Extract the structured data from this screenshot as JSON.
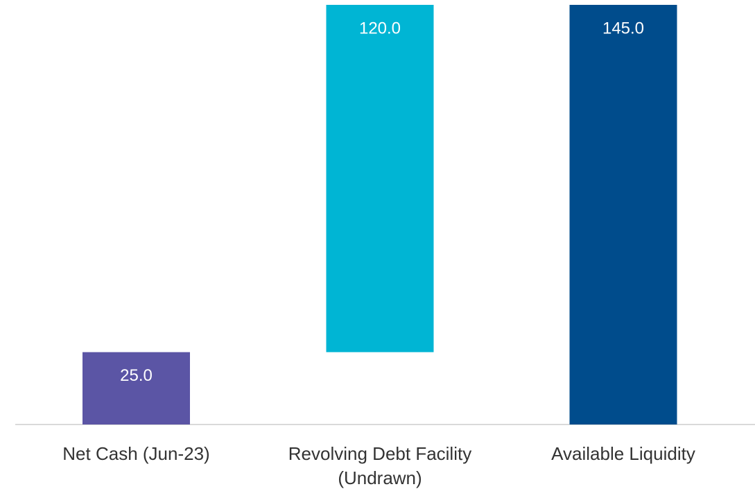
{
  "chart_data": {
    "type": "waterfall",
    "categories": [
      "Net Cash (Jun-23)",
      "Revolving Debt Facility (Undrawn)",
      "Available Liquidity"
    ],
    "values": [
      25,
      120,
      145
    ],
    "value_labels": [
      "25.0",
      "120.0",
      "145.0"
    ],
    "measure": [
      "relative",
      "relative",
      "total"
    ],
    "colors": [
      "#5b55a5",
      "#00b5d4",
      "#004c8c"
    ]
  }
}
